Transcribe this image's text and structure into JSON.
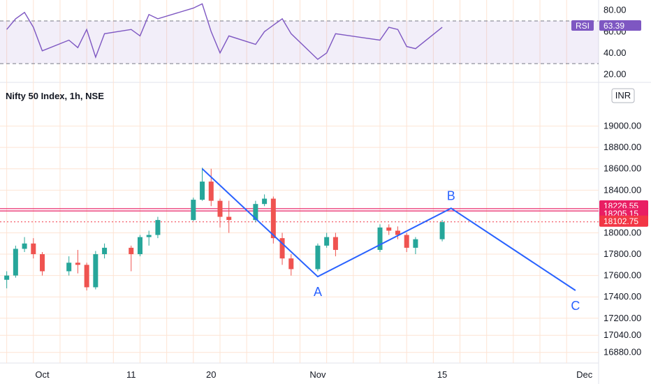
{
  "symbol_title": "Nifty 50 Index, 1h, NSE",
  "currency": "INR",
  "colors": {
    "up": "#26a69a",
    "down": "#ef5350",
    "wave": "#2962ff",
    "rsi": "#7e57c2",
    "hline": "#e91e63",
    "lastPrice": "#f23645"
  },
  "chart_data": [
    {
      "type": "line",
      "indicator": "RSI",
      "legend_label": "RSI",
      "current_value": "63.39",
      "ylim": [
        15,
        87
      ],
      "y_ticks": [
        "80.00",
        "60.00",
        "40.00",
        "20.00"
      ],
      "y_tick_values": [
        80,
        60,
        40,
        20
      ],
      "band": [
        30,
        70
      ],
      "x": [
        "Sep 27",
        "Sep 28",
        "Sep 29",
        "Sep 30",
        "Oct 1",
        "Oct 4",
        "Oct 5",
        "Oct 6",
        "Oct 7",
        "Oct 8",
        "Oct 11",
        "Oct 12",
        "Oct 13",
        "Oct 14",
        "Oct 18",
        "Oct 19",
        "Oct 20",
        "Oct 21",
        "Oct 22",
        "Oct 25",
        "Oct 26",
        "Oct 27",
        "Oct 28",
        "Oct 29",
        "Nov 1",
        "Nov 2",
        "Nov 3",
        "Nov 8",
        "Nov 9",
        "Nov 10",
        "Nov 11",
        "Nov 12",
        "Nov 15"
      ],
      "values": [
        62,
        72,
        78,
        64,
        42,
        52,
        45,
        62,
        36,
        58,
        62,
        56,
        76,
        72,
        82,
        86,
        60,
        40,
        56,
        48,
        60,
        66,
        72,
        58,
        34,
        40,
        58,
        52,
        64,
        62,
        46,
        44,
        64
      ]
    },
    {
      "type": "candlestick",
      "title": "Nifty 50 Index, 1h, NSE",
      "ylim": [
        16780,
        19200
      ],
      "y_ticks": [
        "19000.00",
        "18800.00",
        "18600.00",
        "18400.00",
        "18000.00",
        "17800.00",
        "17600.00",
        "17400.00",
        "17200.00",
        "17040.00",
        "16880.00"
      ],
      "y_tick_values": [
        19000,
        18800,
        18600,
        18400,
        18000,
        17800,
        17600,
        17400,
        17200,
        17040,
        16880
      ],
      "x_ticks": [
        "Oct",
        "11",
        "20",
        "Nov",
        "15",
        "Dec"
      ],
      "x_tick_dates": [
        "Oct 1",
        "Oct 11",
        "Oct 20",
        "Nov 1",
        "Nov 15",
        "Dec 1"
      ],
      "x": [
        "Sep 27",
        "Sep 28",
        "Sep 29",
        "Sep 30",
        "Oct 1",
        "Oct 4",
        "Oct 5",
        "Oct 6",
        "Oct 7",
        "Oct 8",
        "Oct 11",
        "Oct 12",
        "Oct 13",
        "Oct 14",
        "Oct 18",
        "Oct 19",
        "Oct 20",
        "Oct 21",
        "Oct 22",
        "Oct 25",
        "Oct 26",
        "Oct 27",
        "Oct 28",
        "Oct 29",
        "Nov 1",
        "Nov 2",
        "Nov 3",
        "Nov 8",
        "Nov 9",
        "Nov 10",
        "Nov 11",
        "Nov 12",
        "Nov 15"
      ],
      "series": [
        {
          "values": [
            {
              "o": 17560,
              "h": 17640,
              "l": 17480,
              "c": 17600
            },
            {
              "o": 17600,
              "h": 17880,
              "l": 17580,
              "c": 17850
            },
            {
              "o": 17850,
              "h": 17960,
              "l": 17820,
              "c": 17900
            },
            {
              "o": 17900,
              "h": 17950,
              "l": 17760,
              "c": 17800
            },
            {
              "o": 17800,
              "h": 17820,
              "l": 17600,
              "c": 17640
            },
            {
              "o": 17640,
              "h": 17780,
              "l": 17600,
              "c": 17720
            },
            {
              "o": 17720,
              "h": 17840,
              "l": 17620,
              "c": 17700
            },
            {
              "o": 17700,
              "h": 17720,
              "l": 17460,
              "c": 17490
            },
            {
              "o": 17490,
              "h": 17830,
              "l": 17470,
              "c": 17800
            },
            {
              "o": 17800,
              "h": 17900,
              "l": 17760,
              "c": 17860
            },
            {
              "o": 17860,
              "h": 17880,
              "l": 17640,
              "c": 17800
            },
            {
              "o": 17800,
              "h": 17980,
              "l": 17780,
              "c": 17960
            },
            {
              "o": 17960,
              "h": 18020,
              "l": 17880,
              "c": 17980
            },
            {
              "o": 17980,
              "h": 18150,
              "l": 17950,
              "c": 18120
            },
            {
              "o": 18120,
              "h": 18330,
              "l": 18110,
              "c": 18310
            },
            {
              "o": 18310,
              "h": 18610,
              "l": 18300,
              "c": 18480
            },
            {
              "o": 18480,
              "h": 18600,
              "l": 18250,
              "c": 18300
            },
            {
              "o": 18300,
              "h": 18320,
              "l": 18050,
              "c": 18150
            },
            {
              "o": 18150,
              "h": 18300,
              "l": 18000,
              "c": 18120
            },
            {
              "o": 18120,
              "h": 18300,
              "l": 18100,
              "c": 18270
            },
            {
              "o": 18270,
              "h": 18360,
              "l": 18250,
              "c": 18320
            },
            {
              "o": 18320,
              "h": 18340,
              "l": 17900,
              "c": 17950
            },
            {
              "o": 17950,
              "h": 18000,
              "l": 17700,
              "c": 17760
            },
            {
              "o": 17760,
              "h": 17800,
              "l": 17600,
              "c": 17660
            },
            {
              "o": 17660,
              "h": 17900,
              "l": 17640,
              "c": 17880
            },
            {
              "o": 17880,
              "h": 18000,
              "l": 17860,
              "c": 17960
            },
            {
              "o": 17960,
              "h": 18000,
              "l": 17780,
              "c": 17840
            },
            {
              "o": 17840,
              "h": 18080,
              "l": 17820,
              "c": 18050
            },
            {
              "o": 18050,
              "h": 18080,
              "l": 17980,
              "c": 18020
            },
            {
              "o": 18020,
              "h": 18060,
              "l": 17940,
              "c": 17980
            },
            {
              "o": 17980,
              "h": 18000,
              "l": 17820,
              "c": 17860
            },
            {
              "o": 17860,
              "h": 17960,
              "l": 17800,
              "c": 17940
            },
            {
              "o": 17940,
              "h": 18120,
              "l": 17920,
              "c": 18100
            }
          ]
        }
      ],
      "wave_points": [
        {
          "label": "",
          "date": "Oct 19",
          "value": 18600
        },
        {
          "label": "A",
          "date": "Nov 1",
          "value": 17590
        },
        {
          "label": "B",
          "date": "Nov 16",
          "value": 18230
        },
        {
          "label": "C",
          "date": "Nov 30",
          "value": 17460
        }
      ],
      "horizontal_levels": [
        {
          "label": "18226.55",
          "value": 18226.55
        },
        {
          "label": "18205.15",
          "value": 18205.15
        }
      ],
      "last_price": {
        "label": "18102.75",
        "value": 18102.75
      }
    }
  ]
}
